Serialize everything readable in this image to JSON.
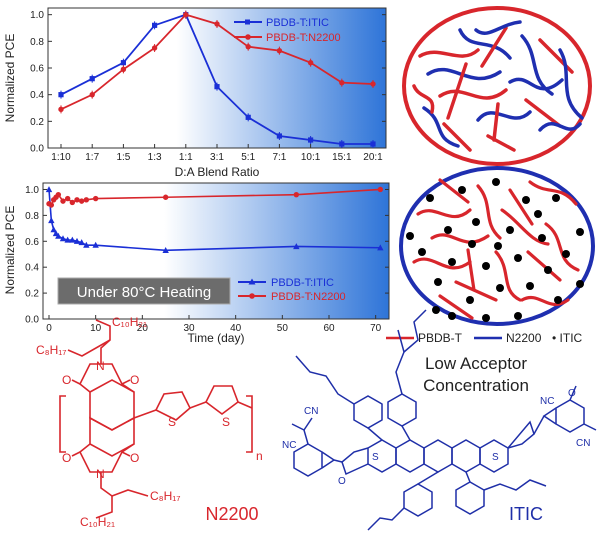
{
  "chart_data": [
    {
      "type": "line",
      "panel": "top",
      "xlabel": "D:A Blend Ratio",
      "ylabel": "Normalized PCE",
      "categories": [
        "1:10",
        "1:7",
        "1:5",
        "1:3",
        "1:1",
        "3:1",
        "5:1",
        "7:1",
        "10:1",
        "15:1",
        "20:1"
      ],
      "ylim": [
        0,
        1.05
      ],
      "yticks": [
        "0.0",
        "0.2",
        "0.4",
        "0.6",
        "0.8",
        "1.0"
      ],
      "series": [
        {
          "name": "PBDB-T:ITIC",
          "color": "#1a2fd6",
          "marker": "square",
          "values": [
            0.4,
            0.52,
            0.64,
            0.92,
            1.0,
            0.46,
            0.23,
            0.09,
            0.06,
            0.03,
            0.03
          ]
        },
        {
          "name": "PBDB-T:N2200",
          "color": "#d8262c",
          "marker": "circle",
          "values": [
            0.29,
            0.4,
            0.59,
            0.75,
            1.0,
            0.93,
            0.76,
            0.73,
            0.64,
            0.49,
            0.48
          ]
        }
      ],
      "legend_position": "top-right"
    },
    {
      "type": "line",
      "panel": "bottom",
      "xlabel": "Time (day)",
      "ylabel": "Normalized PCE",
      "xlim": [
        0,
        72
      ],
      "xticks": [
        0,
        10,
        20,
        30,
        40,
        50,
        60,
        70
      ],
      "ylim": [
        0,
        1.05
      ],
      "yticks": [
        "0.0",
        "0.2",
        "0.4",
        "0.6",
        "0.8",
        "1.0"
      ],
      "annotation": "Under 80°C Heating",
      "series": [
        {
          "name": "PBDB-T:ITIC",
          "color": "#1a2fd6",
          "marker": "triangle",
          "x": [
            0,
            0.5,
            1,
            1.5,
            2,
            3,
            4,
            5,
            6,
            7,
            8,
            10,
            25,
            53,
            71
          ],
          "y": [
            1.0,
            0.76,
            0.69,
            0.66,
            0.64,
            0.62,
            0.61,
            0.61,
            0.6,
            0.59,
            0.57,
            0.57,
            0.53,
            0.56,
            0.55
          ]
        },
        {
          "name": "PBDB-T:N2200",
          "color": "#d8262c",
          "marker": "circle",
          "x": [
            0,
            0.5,
            1,
            1.5,
            2,
            3,
            4,
            5,
            6,
            7,
            8,
            10,
            25,
            53,
            71
          ],
          "y": [
            0.89,
            0.88,
            0.92,
            0.94,
            0.96,
            0.91,
            0.93,
            0.9,
            0.92,
            0.91,
            0.92,
            0.93,
            0.94,
            0.96,
            1.0
          ]
        }
      ],
      "legend_position": "bottom-right"
    }
  ],
  "morphology": {
    "legend": {
      "pbdbt": "PBDB-T",
      "n2200": "N2200",
      "itic": "• ITIC"
    },
    "caption": [
      "Low Acceptor",
      "Concentration"
    ],
    "colors": {
      "pbdbt": "#d8262c",
      "n2200": "#1f2fb0",
      "itic": "#000000"
    }
  },
  "structures": {
    "n2200": {
      "name": "N2200",
      "color": "#d8262c",
      "atoms": {
        "n": "N",
        "o": "O",
        "s": "S",
        "repeat": "n"
      },
      "chains": {
        "c10": "C₁₀H₂₁",
        "c8": "C₈H₁₇"
      }
    },
    "itic": {
      "name": "ITIC",
      "color": "#1f2fa8",
      "atoms": {
        "s": "S",
        "o": "O",
        "nc": "NC",
        "cn": "CN"
      }
    }
  }
}
